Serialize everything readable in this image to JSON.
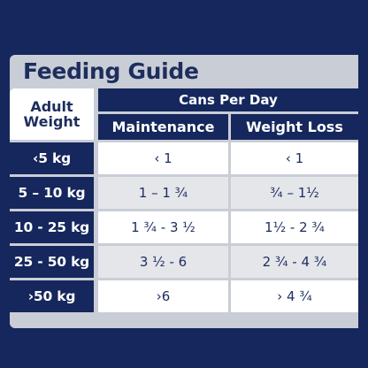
{
  "title": "Feeding Guide",
  "header": {
    "adult": "Adult",
    "weight": "Weight",
    "cans_per_day": "Cans Per Day",
    "maintenance": "Maintenance",
    "weight_loss": "Weight Loss"
  },
  "rows": [
    {
      "weight": "‹5 kg",
      "maintenance": "‹ 1",
      "weight_loss": "‹ 1"
    },
    {
      "weight": "5 – 10 kg",
      "maintenance": "1 – 1 ¾",
      "weight_loss": "¾ – 1½"
    },
    {
      "weight": "10 - 25 kg",
      "maintenance": "1 ¾ - 3 ½",
      "weight_loss": "1½ - 2 ¾"
    },
    {
      "weight": "25 - 50 kg",
      "maintenance": "3 ½ - 6",
      "weight_loss": "2 ¾ - 4 ¾"
    },
    {
      "weight": "›50 kg",
      "maintenance": "›6",
      "weight_loss": "› 4 ¾"
    }
  ],
  "colors": {
    "background": "#15275c",
    "panel": "#c9cdd6",
    "row_light": "#ffffff",
    "row_shaded": "#e4e6ea",
    "text_dark": "#1d2d5e"
  }
}
